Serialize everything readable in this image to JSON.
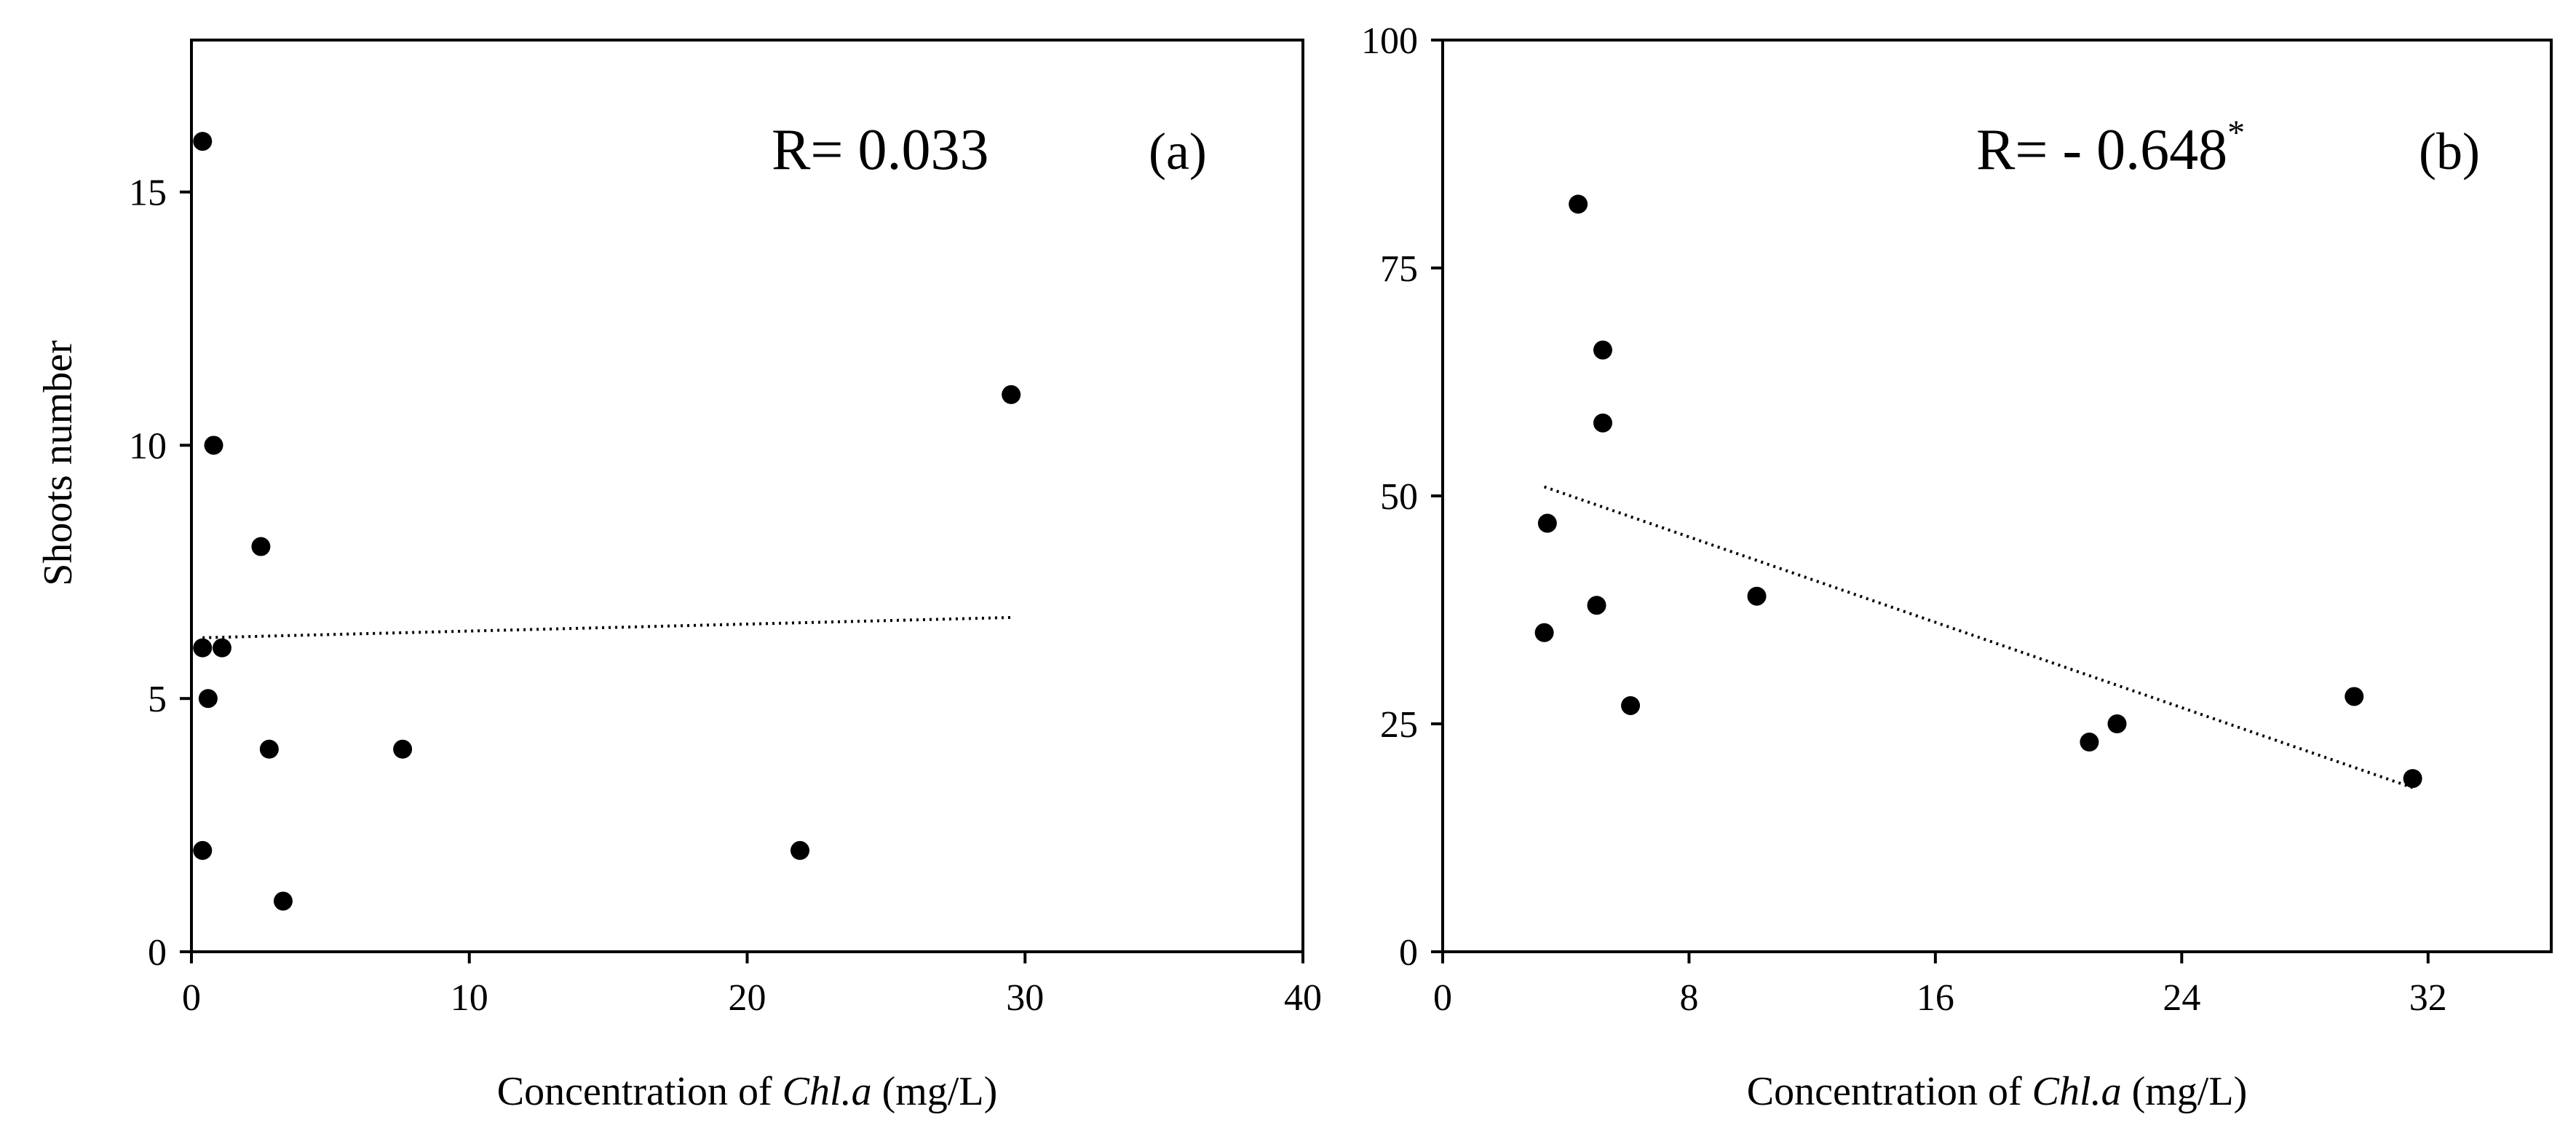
{
  "chart_data": [
    {
      "type": "scatter",
      "panel_label": "(a)",
      "annotation": {
        "prefix": "R= ",
        "value": "0.033",
        "superscript": ""
      },
      "xlabel": {
        "before": "Concentration of ",
        "italic": "Chl.a",
        "after": " (mg/L)"
      },
      "ylabel": "Shoots number",
      "xlim": [
        0,
        40
      ],
      "ylim": [
        0,
        18
      ],
      "xticks": [
        0,
        10,
        20,
        30,
        40
      ],
      "yticks": [
        0,
        5,
        10,
        15
      ],
      "x": [
        0.4,
        0.4,
        0.6,
        0.8,
        1.1,
        2.5,
        2.8,
        3.3,
        7.6,
        21.9,
        29.5,
        0.4
      ],
      "y": [
        16,
        6,
        5,
        10,
        6,
        8,
        4,
        1,
        4,
        2,
        11,
        2
      ],
      "trendline": {
        "x": [
          0.4,
          29.5
        ],
        "y": [
          6.2,
          6.6
        ]
      },
      "colors": {
        "points": "#000000",
        "line": "#000000",
        "frame": "#000000"
      }
    },
    {
      "type": "scatter",
      "panel_label": "(b)",
      "annotation": {
        "prefix": "R= - ",
        "value": "0.648",
        "superscript": "*"
      },
      "xlabel": {
        "before": "Concentration of ",
        "italic": "Chl.a",
        "after": " (mg/L)"
      },
      "ylabel": "",
      "xlim": [
        0,
        36
      ],
      "ylim": [
        0,
        100
      ],
      "xticks": [
        0,
        8,
        16,
        24,
        32
      ],
      "yticks": [
        0,
        25,
        50,
        75,
        100
      ],
      "x": [
        4.4,
        5.2,
        5.2,
        3.4,
        3.3,
        5.0,
        6.1,
        10.2,
        21.0,
        21.9,
        29.6,
        31.5
      ],
      "y": [
        82,
        66,
        58,
        47,
        35,
        38,
        27,
        39,
        23,
        25,
        28,
        19
      ],
      "trendline": {
        "x": [
          3.3,
          31.5
        ],
        "y": [
          51,
          18
        ]
      },
      "colors": {
        "points": "#000000",
        "line": "#000000",
        "frame": "#000000"
      }
    }
  ]
}
